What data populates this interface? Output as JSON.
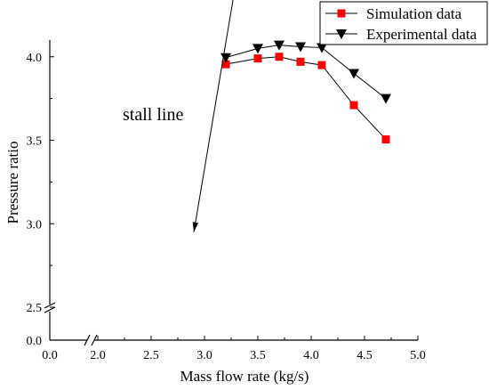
{
  "chart_data": {
    "type": "line",
    "xlabel": "Mass flow rate (kg/s)",
    "ylabel": "Pressure ratio",
    "x_axis": {
      "break_after": 0.0,
      "break_before": 2.0,
      "left_segment_ticks": [
        "0.0"
      ],
      "right_segment_range": [
        2.0,
        5.0
      ],
      "right_segment_ticks": [
        "2.0",
        "2.5",
        "3.0",
        "3.5",
        "4.0",
        "4.5",
        "5.0"
      ]
    },
    "y_axis": {
      "break_after": 0.0,
      "break_before": 2.5,
      "lower_segment_ticks": [
        "0.0"
      ],
      "upper_segment_range": [
        2.5,
        4.1
      ],
      "upper_segment_ticks": [
        "2.5",
        "3.0",
        "3.5",
        "4.0"
      ]
    },
    "series": [
      {
        "name": "Simulation data",
        "color": "#ff0000",
        "marker": "square",
        "points": [
          [
            3.2,
            3.955
          ],
          [
            3.5,
            3.99
          ],
          [
            3.7,
            4.0
          ],
          [
            3.9,
            3.97
          ],
          [
            4.1,
            3.95
          ],
          [
            4.4,
            3.71
          ],
          [
            4.7,
            3.505
          ]
        ]
      },
      {
        "name": "Experimental data",
        "color": "#000000",
        "marker": "triangle-down",
        "points": [
          [
            3.2,
            3.995
          ],
          [
            3.5,
            4.05
          ],
          [
            3.7,
            4.07
          ],
          [
            3.9,
            4.06
          ],
          [
            4.1,
            4.055
          ],
          [
            4.4,
            3.9
          ],
          [
            4.7,
            3.75
          ]
        ]
      }
    ],
    "annotation": {
      "text": "stall line",
      "arrow_from": [
        3.27,
        4.35
      ],
      "arrow_to": [
        2.9,
        2.95
      ]
    },
    "legend": {
      "position": "top-right",
      "entries": [
        "Simulation data",
        "Experimental data"
      ]
    },
    "grid": false
  }
}
